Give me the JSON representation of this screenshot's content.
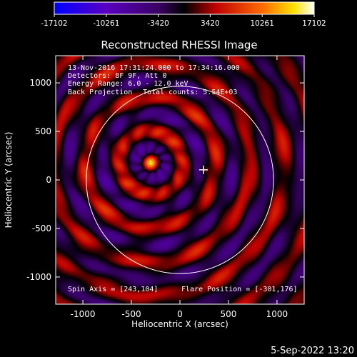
{
  "chart_data": {
    "type": "heatmap",
    "title": "Reconstructed RHESSI Image",
    "xlabel": "Heliocentric X (arcsec)",
    "ylabel": "Heliocentric Y (arcsec)",
    "xlim": [
      -1280,
      1280
    ],
    "ylim": [
      -1280,
      1280
    ],
    "xticks": [
      -1000,
      -500,
      0,
      500,
      1000
    ],
    "yticks": [
      1000,
      500,
      0,
      -500,
      -1000
    ],
    "colorbar": {
      "range": [
        -17102,
        17102
      ],
      "ticks": [
        -17102,
        -10261,
        -3420,
        3420,
        10261,
        17102
      ],
      "colors": [
        "#0000ff",
        "#7a00a0",
        "#000000",
        "#c00000",
        "#ff6000",
        "#ffd000",
        "#ffffff"
      ]
    },
    "solar_disk": {
      "center": [
        0,
        0
      ],
      "radius_arcsec": 965
    },
    "source_peak": {
      "x": -301,
      "y": 176
    },
    "flare_marker": {
      "x": 243,
      "y": 104
    },
    "annotations": {
      "time": "13-Nov-2016 17:31:24.000 to 17:34:16.000",
      "detectors": "Detectors: 8F 9F, Att 0",
      "energy": "Energy Range: 6.0 - 12.0 keV",
      "method": "Back Projection",
      "counts": "Total counts: 5.54E+03",
      "spin_axis": "Spin Axis = [243,104]",
      "flare_position": "Flare Position = [-301,176]"
    }
  },
  "footer": {
    "timestamp": "5-Sep-2022 13:20"
  }
}
